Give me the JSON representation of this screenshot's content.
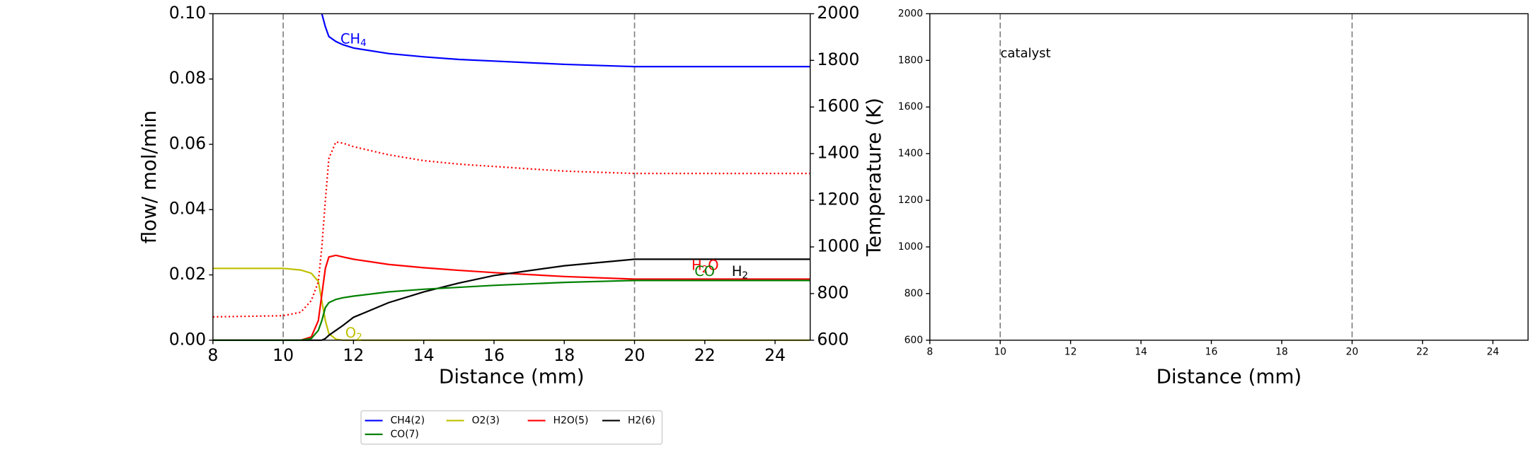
{
  "chart_data": [
    {
      "type": "line",
      "xlabel": "Distance (mm)",
      "ylabel": "flow/ mol/min",
      "y2label": "Temperature (K)",
      "xlim": [
        8,
        25
      ],
      "xticks": [
        8,
        10,
        12,
        14,
        16,
        18,
        20,
        22,
        24
      ],
      "ylim": [
        0,
        0.1
      ],
      "yticks": [
        {
          "value": 0,
          "label": "0.00"
        },
        {
          "value": 0.02,
          "label": "0.02"
        },
        {
          "value": 0.04,
          "label": "0.04"
        },
        {
          "value": 0.06,
          "label": "0.06"
        },
        {
          "value": 0.08,
          "label": "0.08"
        },
        {
          "value": 0.1,
          "label": "0.10"
        }
      ],
      "y2lim": [
        600,
        2000
      ],
      "y2ticks": [
        600,
        800,
        1000,
        1200,
        1400,
        1600,
        1800,
        2000
      ],
      "vlines": [
        10,
        20
      ],
      "legend_loc": "lower center",
      "x": [
        8,
        10,
        10.5,
        10.8,
        11,
        11.1,
        11.2,
        11.3,
        11.5,
        11.7,
        12,
        13,
        14,
        15,
        16,
        18,
        20,
        22,
        25
      ],
      "series": [
        {
          "name": "CH4(2)",
          "color": "#0000ff",
          "values": [
            null,
            null,
            null,
            null,
            null,
            0.1,
            0.096,
            0.093,
            0.0915,
            0.0905,
            0.0895,
            0.0878,
            0.0868,
            0.086,
            0.0855,
            0.0845,
            0.0838,
            0.0838,
            0.0838
          ]
        },
        {
          "name": "O2(3)",
          "color": "#bfbf00",
          "values": [
            0.022,
            0.022,
            0.0215,
            0.0205,
            0.018,
            0.012,
            0.006,
            0.002,
            0.0003,
            0,
            0,
            0,
            0,
            0,
            0,
            0,
            0,
            0,
            0
          ]
        },
        {
          "name": "H2O(5)",
          "color": "#ff0000",
          "values": [
            0,
            0,
            0,
            0.001,
            0.006,
            0.014,
            0.022,
            0.0255,
            0.026,
            0.0255,
            0.0248,
            0.0232,
            0.0222,
            0.0214,
            0.0207,
            0.0195,
            0.0187,
            0.0187,
            0.0187
          ]
        },
        {
          "name": "H2(6)",
          "color": "#000000",
          "values": [
            0,
            0,
            0,
            0,
            0,
            0,
            0.0005,
            0.0015,
            0.003,
            0.0045,
            0.007,
            0.0115,
            0.0148,
            0.0175,
            0.0198,
            0.0228,
            0.0248,
            0.0248,
            0.0248
          ]
        },
        {
          "name": "CO(7)",
          "color": "#008000",
          "values": [
            0,
            0,
            0,
            0.0005,
            0.003,
            0.006,
            0.01,
            0.0115,
            0.0125,
            0.013,
            0.0135,
            0.0148,
            0.0156,
            0.0162,
            0.0168,
            0.0177,
            0.0183,
            0.0183,
            0.0183
          ]
        },
        {
          "color": "#ff0000",
          "axis": "y2",
          "dash": "dotted",
          "values": [
            700,
            705,
            720,
            770,
            850,
            1000,
            1200,
            1380,
            1450,
            1445,
            1430,
            1395,
            1370,
            1355,
            1345,
            1325,
            1315,
            1315,
            1315
          ]
        }
      ],
      "annotations": [
        {
          "text": "CH",
          "sub": "4",
          "color": "#0000ff"
        },
        {
          "text": "H",
          "sub": "2",
          "text2": "O",
          "color": "#ff0000"
        },
        {
          "text": "CO",
          "color": "#008000"
        },
        {
          "text": "H",
          "sub": "2",
          "color": "#000000"
        },
        {
          "text": "O",
          "sub": "2",
          "color": "#bfbf00"
        }
      ]
    },
    {
      "type": "line",
      "xlabel": "Distance (mm)",
      "xlim": [
        8,
        25
      ],
      "xticks": [
        8,
        10,
        12,
        14,
        16,
        18,
        20,
        22,
        24
      ],
      "ylim": [
        600,
        2000
      ],
      "yticks": [
        600,
        800,
        1000,
        1200,
        1400,
        1600,
        1800,
        2000
      ],
      "vlines": [
        10,
        20
      ],
      "annotations": [
        {
          "text": "catalyst",
          "color": "#000000"
        }
      ]
    }
  ]
}
